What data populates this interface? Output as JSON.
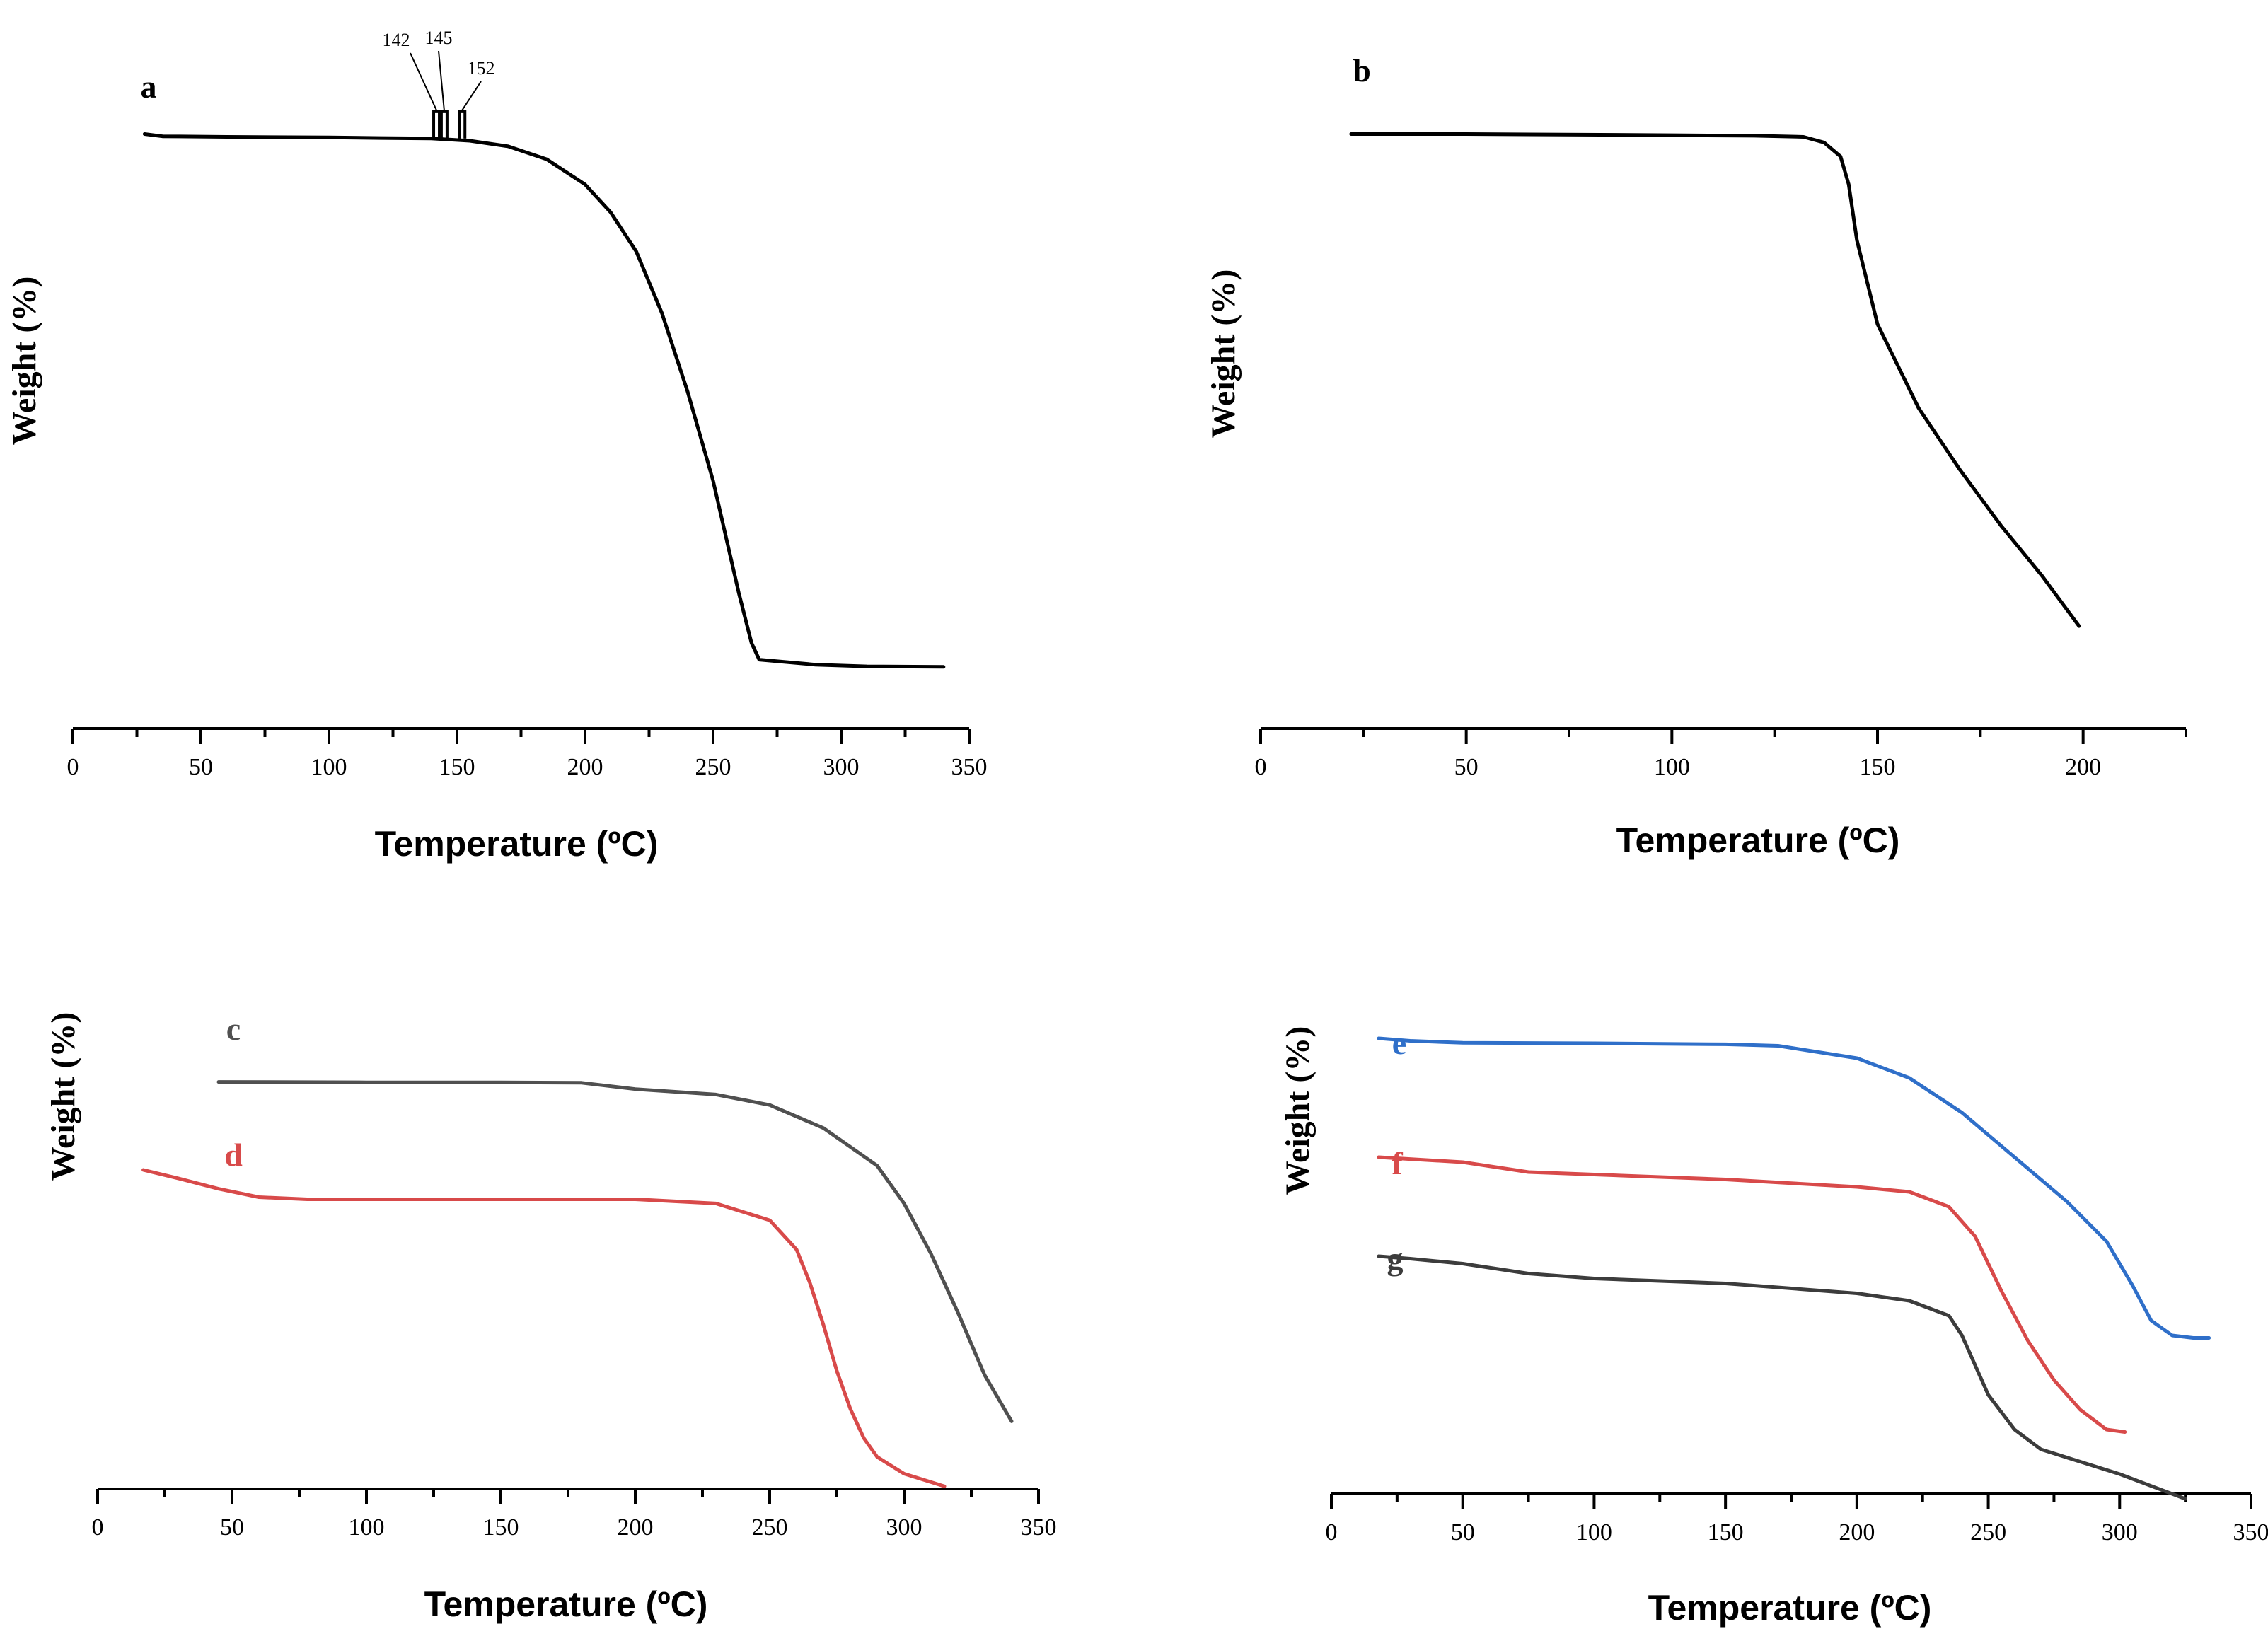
{
  "chart_data": [
    {
      "type": "line",
      "panel": "a",
      "xlabel": "Temperature (ºC)",
      "ylabel": "Weight (%)",
      "xlim": [
        0,
        350
      ],
      "xticks": [
        0,
        50,
        100,
        150,
        200,
        250,
        300,
        350
      ],
      "ylim": [
        0,
        105
      ],
      "annotations": [
        "142",
        "145",
        "152"
      ],
      "series": [
        {
          "name": "a",
          "label": "a",
          "color": "#000000",
          "x": [
            28,
            35,
            60,
            100,
            120,
            140,
            155,
            170,
            185,
            200,
            210,
            220,
            230,
            240,
            250,
            255,
            260,
            265,
            268,
            275,
            290,
            310,
            340
          ],
          "y": [
            100,
            99.6,
            99.5,
            99.4,
            99.3,
            99.2,
            98.8,
            97.8,
            95.5,
            91,
            86,
            79,
            68,
            54,
            38,
            28,
            18,
            9,
            6,
            5.7,
            5.1,
            4.8,
            4.7
          ]
        }
      ]
    },
    {
      "type": "line",
      "panel": "b",
      "xlabel": "Temperature (ºC)",
      "ylabel": "Weight (%)",
      "xlim": [
        0,
        225
      ],
      "xticks": [
        0,
        50,
        100,
        150,
        200
      ],
      "ylim": [
        0,
        105
      ],
      "series": [
        {
          "name": "b",
          "label": "b",
          "color": "#000000",
          "x": [
            22,
            50,
            100,
            120,
            132,
            137,
            141,
            143,
            145,
            150,
            160,
            170,
            180,
            190,
            199
          ],
          "y": [
            100,
            100,
            99.8,
            99.7,
            99.5,
            98.5,
            96,
            91,
            81,
            66,
            51,
            40,
            30,
            21,
            12
          ]
        }
      ]
    },
    {
      "type": "line",
      "panel": "c-d",
      "xlabel": "Temperature (ºC)",
      "ylabel": "Weight (%)",
      "xlim": [
        0,
        350
      ],
      "xticks": [
        0,
        50,
        100,
        150,
        200,
        250,
        300,
        350
      ],
      "ylim": [
        0,
        105
      ],
      "series": [
        {
          "name": "c",
          "label": "c",
          "color": "#505050",
          "x": [
            45,
            100,
            150,
            180,
            200,
            230,
            250,
            270,
            290,
            300,
            310,
            320,
            330,
            340
          ],
          "y": [
            100,
            99.9,
            99.9,
            99.8,
            98.3,
            97,
            94.5,
            89,
            80,
            71,
            59,
            45,
            30,
            19
          ]
        },
        {
          "name": "d",
          "label": "d",
          "color": "#d84a4a",
          "x": [
            17,
            30,
            45,
            60,
            78,
            100,
            150,
            200,
            230,
            250,
            260,
            265,
            270,
            275,
            280,
            285,
            290,
            300,
            315
          ],
          "y": [
            79,
            77,
            74.5,
            72.5,
            72,
            72,
            72,
            72,
            71,
            67,
            60,
            52,
            42,
            31,
            22,
            15,
            10.5,
            6.5,
            3.5
          ]
        }
      ]
    },
    {
      "type": "line",
      "panel": "e-f-g",
      "xlabel": "Temperature (ºC)",
      "ylabel": "Weight (%)",
      "xlim": [
        0,
        350
      ],
      "xticks": [
        0,
        50,
        100,
        150,
        200,
        250,
        300,
        350
      ],
      "ylim": [
        0,
        105
      ],
      "series": [
        {
          "name": "e",
          "label": "e",
          "color": "#2f6fc9",
          "x": [
            18,
            30,
            50,
            100,
            150,
            170,
            200,
            220,
            240,
            260,
            280,
            295,
            305,
            312,
            320,
            328,
            334
          ],
          "y": [
            96,
            95.5,
            95.1,
            95,
            94.8,
            94.5,
            92,
            88,
            81,
            72,
            63,
            55,
            46,
            39,
            36,
            35.5,
            35.5
          ]
        },
        {
          "name": "f",
          "label": "f",
          "color": "#d84a4a",
          "x": [
            18,
            50,
            75,
            100,
            150,
            200,
            220,
            235,
            245,
            255,
            265,
            275,
            285,
            295,
            302
          ],
          "y": [
            72,
            71,
            69,
            68.5,
            67.5,
            66,
            65,
            62,
            56,
            45,
            35,
            27,
            21,
            17,
            16.5
          ]
        },
        {
          "name": "g",
          "label": "g",
          "color": "#3c3c3c",
          "x": [
            18,
            30,
            50,
            75,
            100,
            150,
            200,
            220,
            235,
            240,
            245,
            250,
            260,
            270,
            285,
            300,
            325
          ],
          "y": [
            52,
            51.5,
            50.5,
            48.5,
            47.5,
            46.5,
            44.5,
            43,
            40,
            36,
            30,
            24,
            17,
            13,
            10.5,
            8,
            3
          ]
        }
      ]
    }
  ]
}
